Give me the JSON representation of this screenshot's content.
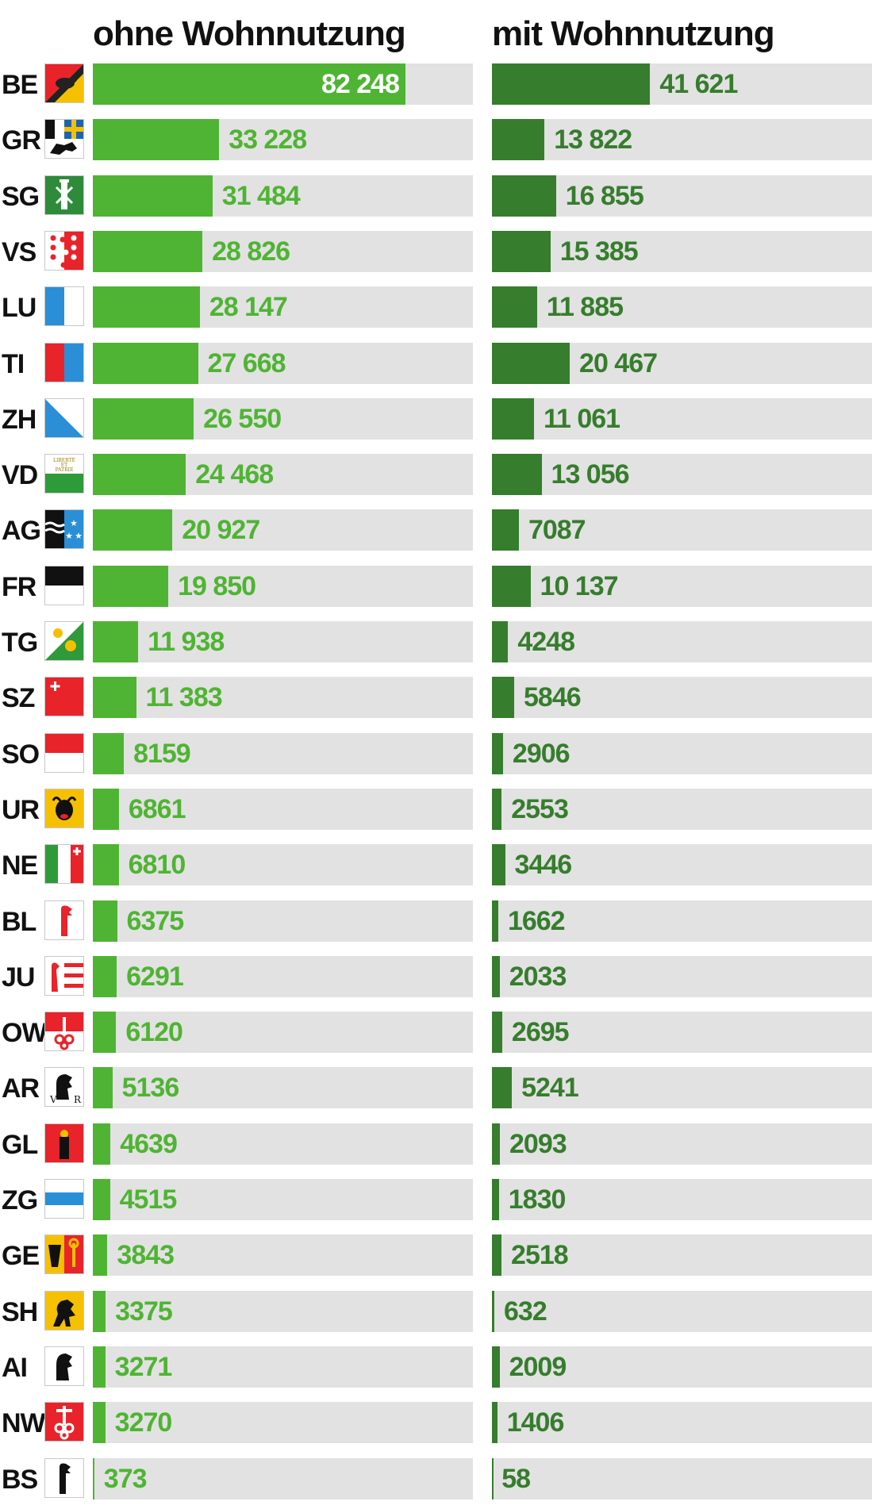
{
  "chart_data": {
    "type": "bar",
    "orientation": "horizontal",
    "categories": [
      "BE",
      "GR",
      "SG",
      "VS",
      "LU",
      "TI",
      "ZH",
      "VD",
      "AG",
      "FR",
      "TG",
      "SZ",
      "SO",
      "UR",
      "NE",
      "BL",
      "JU",
      "OW",
      "AR",
      "GL",
      "ZG",
      "GE",
      "SH",
      "AI",
      "NW",
      "BS"
    ],
    "series": [
      {
        "name": "ohne Wohnnutzung",
        "color": "#4fb433",
        "values": [
          82248,
          33228,
          31484,
          28826,
          28147,
          27668,
          26550,
          24468,
          20927,
          19850,
          11938,
          11383,
          8159,
          6861,
          6810,
          6375,
          6291,
          6120,
          5136,
          4639,
          4515,
          3843,
          3375,
          3271,
          3270,
          373
        ],
        "labels": [
          "82 248",
          "33 228",
          "31 484",
          "28 826",
          "28 147",
          "27 668",
          "26 550",
          "24 468",
          "20 927",
          "19 850",
          "11 938",
          "11 383",
          "8159",
          "6861",
          "6810",
          "6375",
          "6291",
          "6120",
          "5136",
          "4639",
          "4515",
          "3843",
          "3375",
          "3271",
          "3270",
          "373"
        ]
      },
      {
        "name": "mit Wohnnutzung",
        "color": "#367d2d",
        "values": [
          41621,
          13822,
          16855,
          15385,
          11885,
          20467,
          11061,
          13056,
          7087,
          10137,
          4248,
          5846,
          2906,
          2553,
          3446,
          1662,
          2033,
          2695,
          5241,
          2093,
          1830,
          2518,
          632,
          2009,
          1406,
          58
        ],
        "labels": [
          "41 621",
          "13 822",
          "16 855",
          "15 385",
          "11 885",
          "20 467",
          "11 061",
          "13 056",
          "7087",
          "10 137",
          "4248",
          "5846",
          "2906",
          "2553",
          "3446",
          "1662",
          "2033",
          "2695",
          "5241",
          "2093",
          "1830",
          "2518",
          "632",
          "2009",
          "1406",
          "58"
        ]
      }
    ],
    "xlim": [
      0,
      100000
    ],
    "track_color": "#e2e2e2",
    "grid": false,
    "legend": "none",
    "flag_icons": [
      "bern-flag-icon",
      "graubuenden-flag-icon",
      "st-gallen-flag-icon",
      "wallis-flag-icon",
      "luzern-flag-icon",
      "tessin-flag-icon",
      "zuerich-flag-icon",
      "waadt-flag-icon",
      "aargau-flag-icon",
      "freiburg-flag-icon",
      "thurgau-flag-icon",
      "schwyz-flag-icon",
      "solothurn-flag-icon",
      "uri-flag-icon",
      "neuenburg-flag-icon",
      "basel-landschaft-flag-icon",
      "jura-flag-icon",
      "obwalden-flag-icon",
      "appenzell-ausserrhoden-flag-icon",
      "glarus-flag-icon",
      "zug-flag-icon",
      "genf-flag-icon",
      "schaffhausen-flag-icon",
      "appenzell-innerrhoden-flag-icon",
      "nidwalden-flag-icon",
      "basel-stadt-flag-icon"
    ]
  },
  "headers": {
    "left": "ohne Wohnnutzung",
    "right": "mit Wohnnutzung"
  },
  "vd_flag_text": [
    "LIBERTÉ",
    "ET",
    "PATRIE"
  ]
}
